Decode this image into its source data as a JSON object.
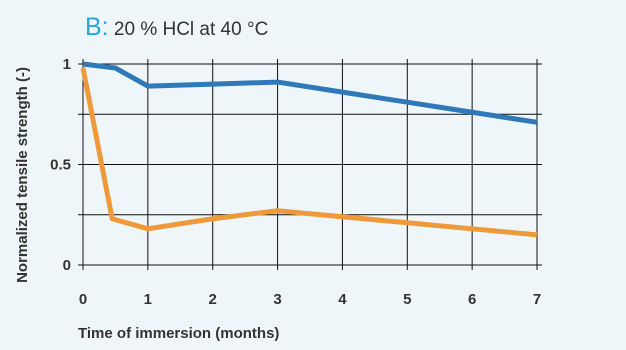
{
  "chart_data": {
    "type": "line",
    "title_prefix": "B:",
    "title": "20 % HCl at 40 °C",
    "xlabel": "Time of immersion (months)",
    "ylabel": "Normalized tensile strength (-)",
    "xlim": [
      0,
      7
    ],
    "ylim": [
      0,
      1
    ],
    "x_ticks": [
      "0",
      "1",
      "2",
      "3",
      "4",
      "5",
      "6",
      "7"
    ],
    "y_ticks": [
      "0",
      "0.5",
      "1"
    ],
    "grid": true,
    "series": [
      {
        "color": "#2f78b9",
        "points": [
          [
            0,
            1.0
          ],
          [
            0.5,
            0.98
          ],
          [
            1,
            0.89
          ],
          [
            2,
            0.9
          ],
          [
            3,
            0.91
          ],
          [
            4,
            0.86
          ],
          [
            5,
            0.81
          ],
          [
            6,
            0.76
          ],
          [
            7,
            0.71
          ]
        ]
      },
      {
        "color": "#ee9a3b",
        "points": [
          [
            0,
            0.98
          ],
          [
            0.45,
            0.23
          ],
          [
            1,
            0.18
          ],
          [
            2,
            0.23
          ],
          [
            3,
            0.27
          ],
          [
            4,
            0.24
          ],
          [
            5,
            0.21
          ],
          [
            6,
            0.18
          ],
          [
            7,
            0.15
          ]
        ]
      }
    ]
  }
}
